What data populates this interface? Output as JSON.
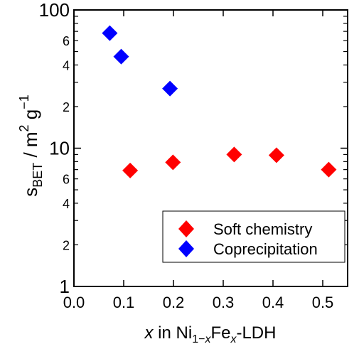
{
  "chart_data": {
    "type": "scatter",
    "x_scale": "linear",
    "y_scale": "log",
    "xlim": [
      0.0,
      0.55
    ],
    "ylim": [
      1,
      100
    ],
    "grid": false,
    "legend_position": "bottom-right",
    "x_ticks": [
      {
        "value": 0.0,
        "label": "0.0"
      },
      {
        "value": 0.1,
        "label": "0.1"
      },
      {
        "value": 0.2,
        "label": "0.2"
      },
      {
        "value": 0.3,
        "label": "0.3"
      },
      {
        "value": 0.4,
        "label": "0.4"
      },
      {
        "value": 0.5,
        "label": "0.5"
      }
    ],
    "y_major_ticks": [
      {
        "value": 1,
        "label": "1"
      },
      {
        "value": 10,
        "label": "10"
      },
      {
        "value": 100,
        "label": "100"
      }
    ],
    "y_minor_ticks": [
      {
        "value": 2,
        "label": "2"
      },
      {
        "value": 4,
        "label": "4"
      },
      {
        "value": 6,
        "label": "6"
      },
      {
        "value": 20,
        "label": "2"
      },
      {
        "value": 40,
        "label": "4"
      },
      {
        "value": 60,
        "label": "6"
      }
    ],
    "xlabel": {
      "italic_var": "x",
      "text_mid": " in Ni",
      "sub1": "1−",
      "sub1_italic": "x",
      "text_fe": "Fe",
      "sub2_italic": "x",
      "text_end": "-LDH"
    },
    "ylabel": {
      "main": "s",
      "sub": "BET",
      "rest": " / m",
      "sup1": "2",
      "g": " g",
      "sup2": "−1"
    },
    "series": [
      {
        "name": "Soft chemistry",
        "color": "#ff0000",
        "marker": "diamond",
        "points": [
          {
            "x": 0.113,
            "y": 6.9
          },
          {
            "x": 0.199,
            "y": 7.9
          },
          {
            "x": 0.322,
            "y": 9.0
          },
          {
            "x": 0.407,
            "y": 8.9
          },
          {
            "x": 0.512,
            "y": 7.0
          }
        ]
      },
      {
        "name": "Coprecipitation",
        "color": "#0000ff",
        "marker": "diamond",
        "points": [
          {
            "x": 0.072,
            "y": 68
          },
          {
            "x": 0.095,
            "y": 46
          },
          {
            "x": 0.193,
            "y": 27
          }
        ]
      }
    ]
  }
}
